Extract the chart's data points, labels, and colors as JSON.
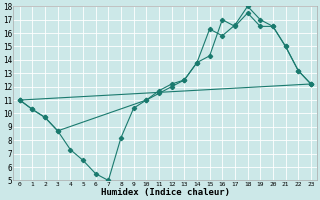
{
  "xlabel": "Humidex (Indice chaleur)",
  "bg_color": "#cce8e8",
  "line_color": "#1a7a6e",
  "grid_color": "#ffffff",
  "xlim": [
    -0.5,
    23.5
  ],
  "ylim": [
    5,
    18
  ],
  "xticks": [
    0,
    1,
    2,
    3,
    4,
    5,
    6,
    7,
    8,
    9,
    10,
    11,
    12,
    13,
    14,
    15,
    16,
    17,
    18,
    19,
    20,
    21,
    22,
    23
  ],
  "yticks": [
    5,
    6,
    7,
    8,
    9,
    10,
    11,
    12,
    13,
    14,
    15,
    16,
    17,
    18
  ],
  "line1_x": [
    0,
    1,
    2,
    3,
    4,
    5,
    6,
    7,
    8,
    9,
    10,
    11,
    12,
    13,
    14,
    15,
    16,
    17,
    18,
    19,
    20,
    21,
    22,
    23
  ],
  "line1_y": [
    11,
    10.3,
    9.7,
    8.7,
    7.3,
    6.5,
    5.5,
    5.0,
    8.2,
    10.4,
    11.0,
    11.5,
    12.0,
    12.5,
    13.8,
    16.3,
    15.8,
    16.6,
    18.0,
    17.0,
    16.5,
    15.0,
    13.2,
    12.2
  ],
  "line2_x": [
    0,
    1,
    2,
    3,
    10,
    11,
    12,
    13,
    14,
    15,
    16,
    17,
    18,
    19,
    20,
    21,
    22,
    23
  ],
  "line2_y": [
    11,
    10.3,
    9.7,
    8.7,
    11.0,
    11.7,
    12.2,
    12.5,
    13.8,
    14.3,
    17.0,
    16.5,
    17.5,
    16.5,
    16.5,
    15.0,
    13.2,
    12.2
  ],
  "line3_x": [
    0,
    23
  ],
  "line3_y": [
    11,
    12.2
  ],
  "marker": "D",
  "markersize": 2.2,
  "lw": 0.8
}
